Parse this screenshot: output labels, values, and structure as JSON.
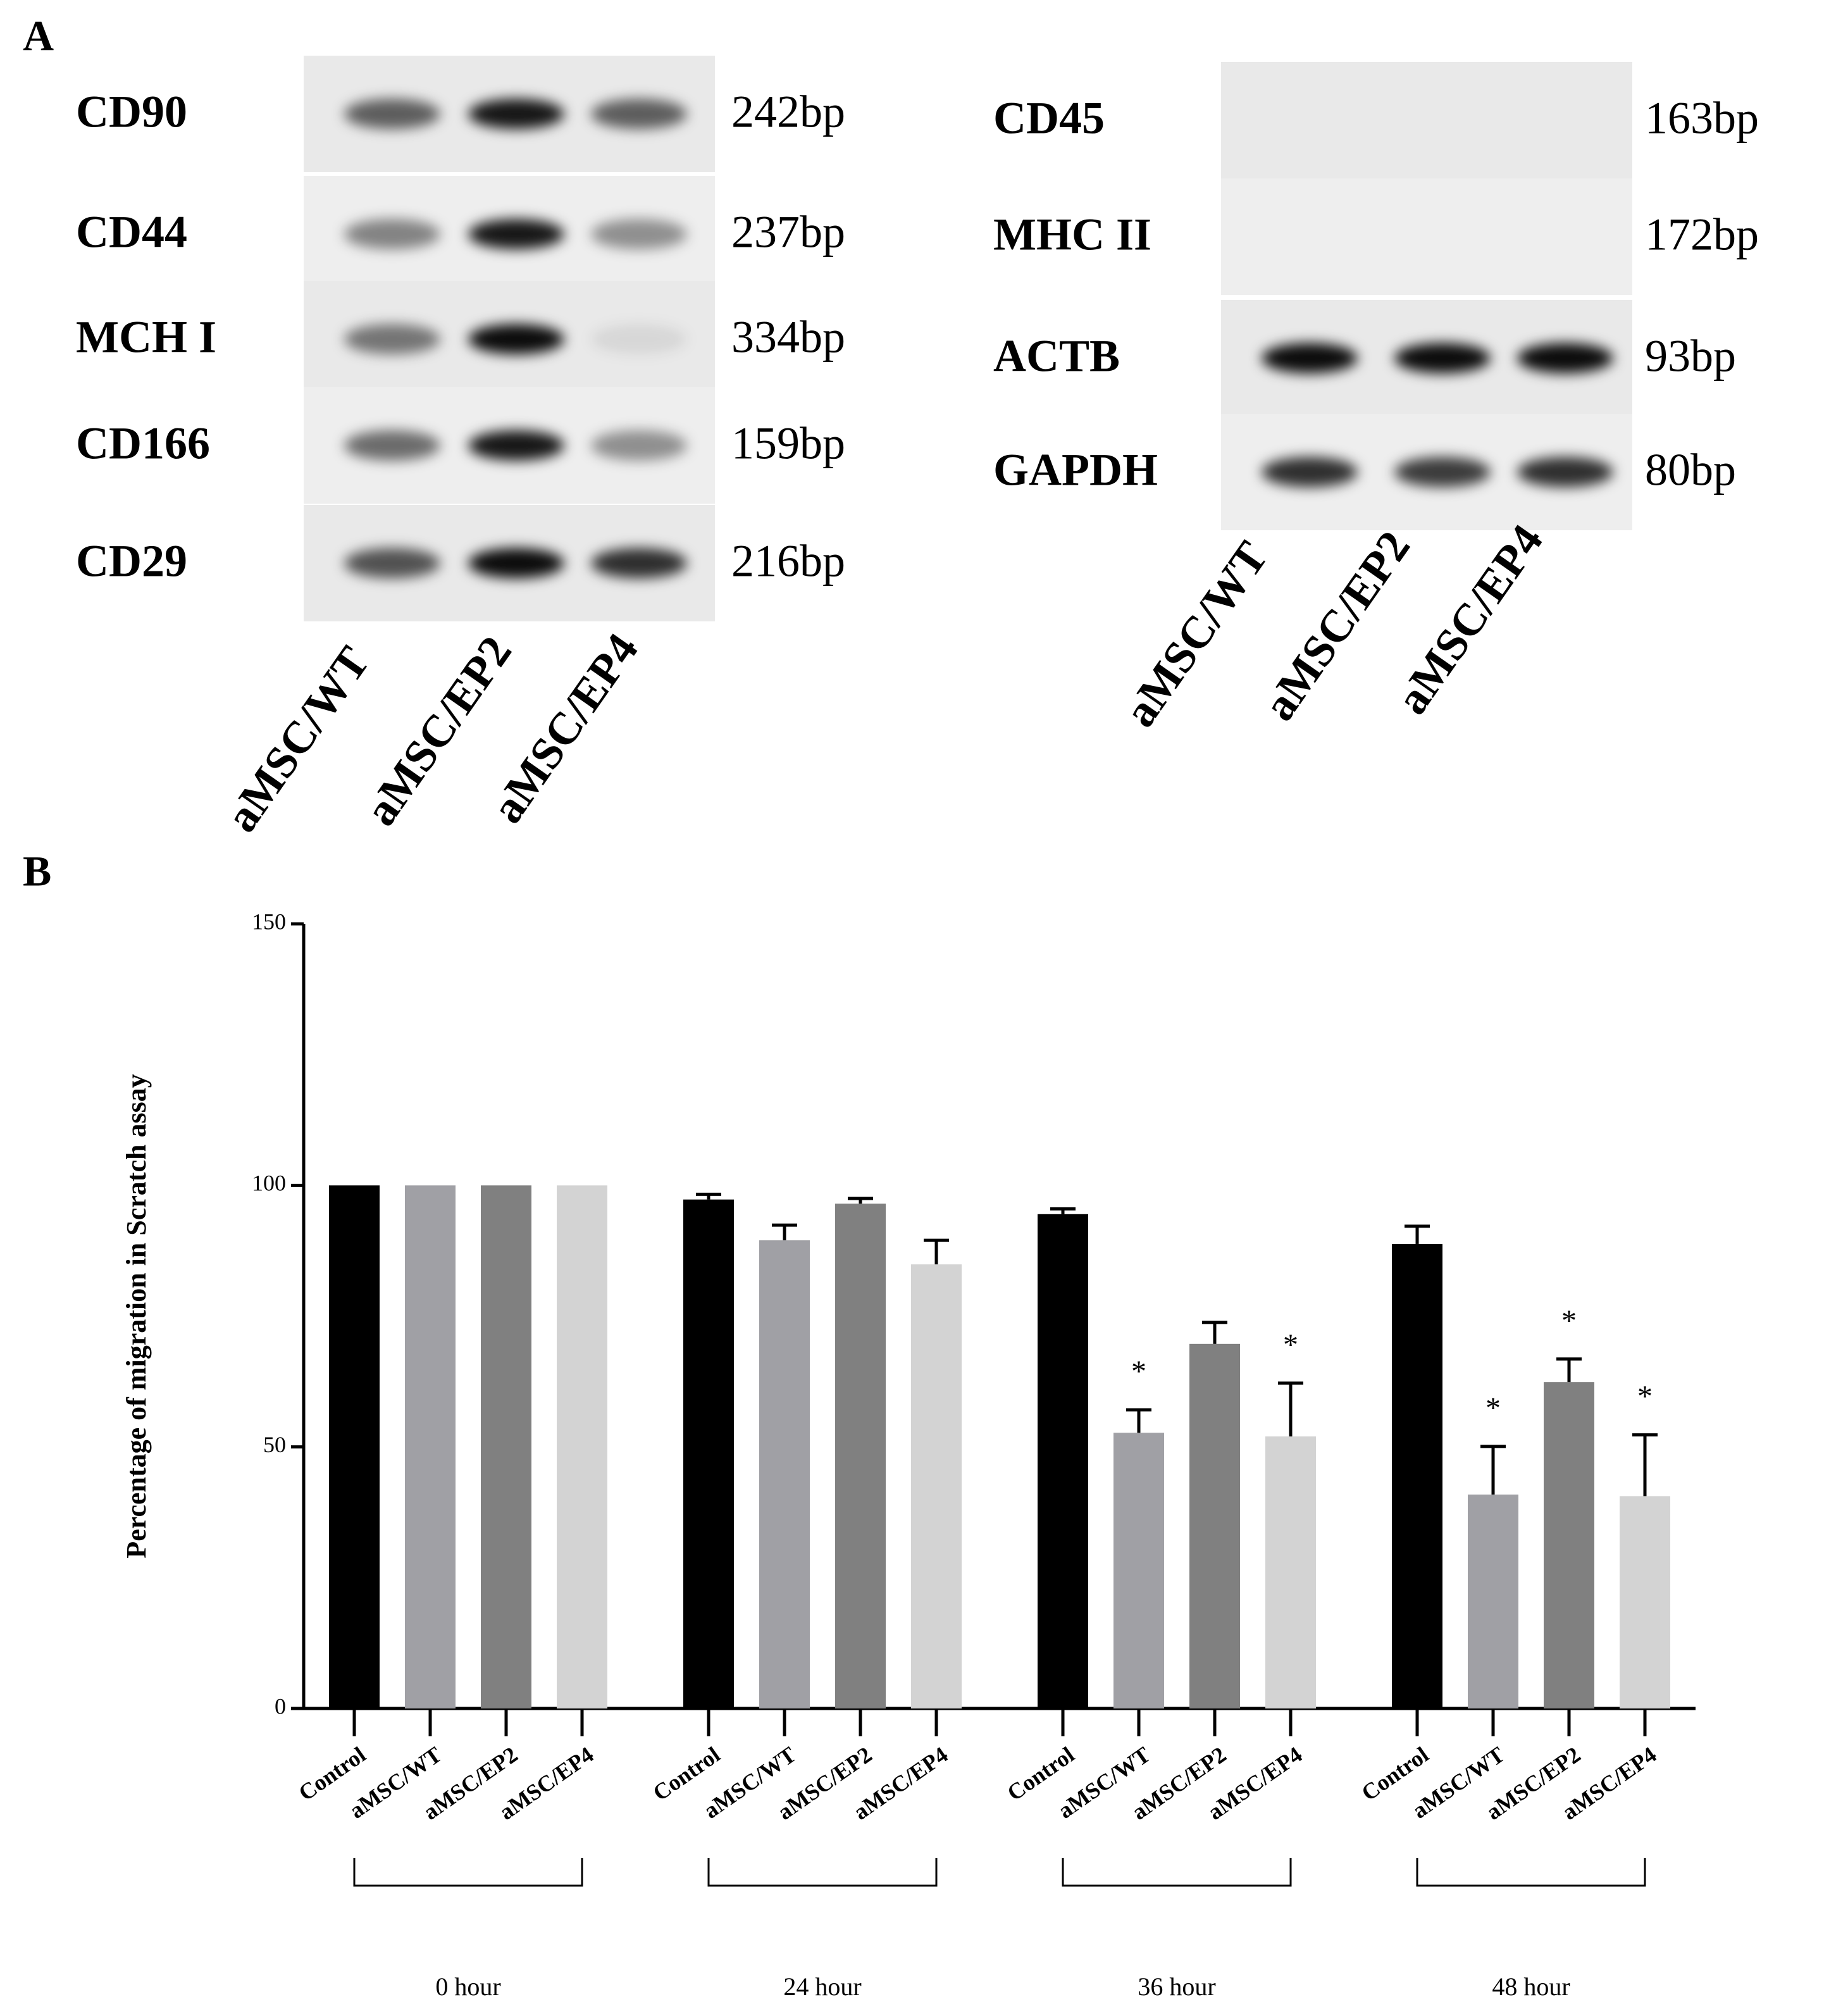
{
  "panel_a": {
    "label": "A",
    "gels": [
      {
        "rows": [
          {
            "name": "CD90",
            "size": "242bp"
          },
          {
            "name": "CD44",
            "size": "237bp"
          },
          {
            "name": "MCH I",
            "size": "334bp"
          },
          {
            "name": "CD166",
            "size": "159bp"
          },
          {
            "name": "CD29",
            "size": "216bp"
          }
        ],
        "lanes": [
          "aMSC/WT",
          "aMSC/EP2",
          "aMSC/EP4"
        ]
      },
      {
        "rows": [
          {
            "name": "CD45",
            "size": "163bp"
          },
          {
            "name": "MHC II",
            "size": "172bp"
          },
          {
            "name": "ACTB",
            "size": "93bp"
          },
          {
            "name": "GAPDH",
            "size": "80bp"
          }
        ],
        "lanes": [
          "aMSC/WT",
          "aMSC/EP2",
          "aMSC/EP4"
        ]
      }
    ]
  },
  "chart_data": {
    "type": "bar",
    "panel_label": "B",
    "y_label": "Percentage of migration in Scratch assay",
    "categories": [
      "0 hour",
      "24 hour",
      "36 hour",
      "48 hour"
    ],
    "series": [
      {
        "name": "Control",
        "color": "#000000",
        "values": [
          100,
          97.3,
          94.5,
          88.8
        ],
        "errors": [
          0,
          1,
          1,
          3.4
        ],
        "significance": [
          null,
          null,
          null,
          null
        ]
      },
      {
        "name": "aMSC/WT",
        "color": "#a0a0a5",
        "values": [
          100,
          89.5,
          52.7,
          40.9
        ],
        "errors": [
          0,
          2.9,
          4.4,
          9.2
        ],
        "significance": [
          null,
          null,
          "*",
          "*"
        ]
      },
      {
        "name": "aMSC/EP2",
        "color": "#808080",
        "values": [
          100,
          96.5,
          69.7,
          62.4
        ],
        "errors": [
          0,
          1,
          4.1,
          4.4
        ],
        "significance": [
          null,
          null,
          null,
          "*"
        ]
      },
      {
        "name": "aMSC/EP4",
        "color": "#d3d3d3",
        "values": [
          100,
          84.9,
          52,
          40.6
        ],
        "errors": [
          0,
          4.6,
          10.2,
          11.7
        ],
        "significance": [
          null,
          null,
          "*",
          "*"
        ]
      }
    ],
    "ylim": [
      0,
      150
    ],
    "yticks": [
      0,
      50,
      100,
      150
    ]
  }
}
